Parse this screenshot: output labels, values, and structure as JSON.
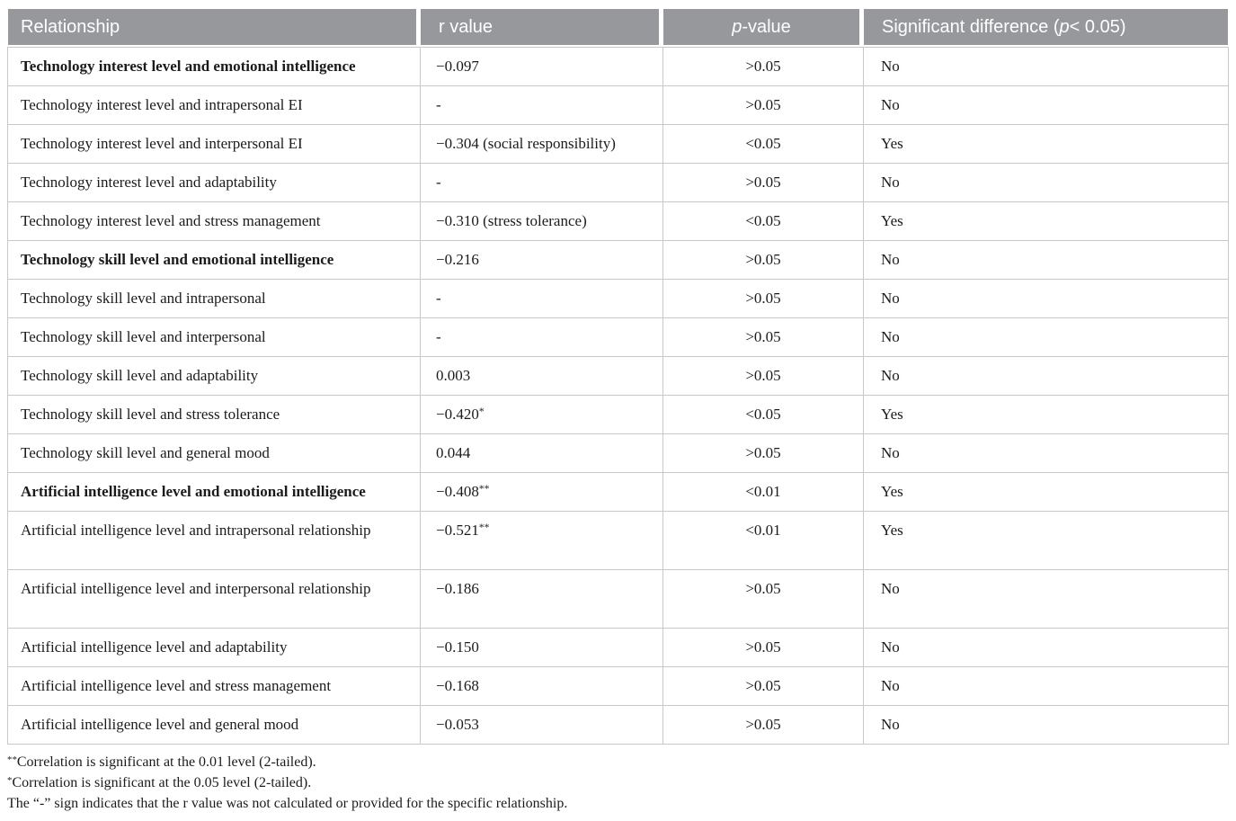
{
  "colors": {
    "header_background": "#96989b",
    "header_text": "#ffffff",
    "grid_border": "#c6c8c9",
    "body_text": "#1b1b1b"
  },
  "header": {
    "relationship": "Relationship",
    "r_value": "r value",
    "p_value": {
      "italic": "p",
      "post": "-value"
    },
    "significant": {
      "pre": "Significant difference (",
      "italic": "p",
      "post": " < 0.05)"
    }
  },
  "rows": [
    {
      "relationship": "Technology interest level and emotional intelligence",
      "bold": true,
      "tall": false,
      "r": "−0.097",
      "r_sup": "",
      "p": ">0.05",
      "sig": "No"
    },
    {
      "relationship": "Technology interest level and intrapersonal EI",
      "bold": false,
      "tall": false,
      "r": "-",
      "r_sup": "",
      "p": ">0.05",
      "sig": "No"
    },
    {
      "relationship": "Technology interest level and interpersonal EI",
      "bold": false,
      "tall": false,
      "r": "−0.304 (social responsibility)",
      "r_sup": "",
      "p": "<0.05",
      "sig": "Yes"
    },
    {
      "relationship": "Technology interest level and adaptability",
      "bold": false,
      "tall": false,
      "r": "-",
      "r_sup": "",
      "p": ">0.05",
      "sig": "No"
    },
    {
      "relationship": "Technology interest level and stress management",
      "bold": false,
      "tall": false,
      "r": "−0.310 (stress tolerance)",
      "r_sup": "",
      "p": "<0.05",
      "sig": "Yes"
    },
    {
      "relationship": "Technology skill level and emotional intelligence",
      "bold": true,
      "tall": false,
      "r": "−0.216",
      "r_sup": "",
      "p": ">0.05",
      "sig": "No"
    },
    {
      "relationship": "Technology skill level and intrapersonal",
      "bold": false,
      "tall": false,
      "r": "-",
      "r_sup": "",
      "p": ">0.05",
      "sig": "No"
    },
    {
      "relationship": "Technology skill level and interpersonal",
      "bold": false,
      "tall": false,
      "r": "-",
      "r_sup": "",
      "p": ">0.05",
      "sig": "No"
    },
    {
      "relationship": "Technology skill level and adaptability",
      "bold": false,
      "tall": false,
      "r": "0.003",
      "r_sup": "",
      "p": ">0.05",
      "sig": "No"
    },
    {
      "relationship": "Technology skill level and stress tolerance",
      "bold": false,
      "tall": false,
      "r": "−0.420",
      "r_sup": "*",
      "p": "<0.05",
      "sig": "Yes"
    },
    {
      "relationship": "Technology skill level and general mood",
      "bold": false,
      "tall": false,
      "r": "0.044",
      "r_sup": "",
      "p": ">0.05",
      "sig": "No"
    },
    {
      "relationship": "Artificial intelligence level and emotional intelligence",
      "bold": true,
      "tall": false,
      "r": "−0.408",
      "r_sup": "**",
      "p": "<0.01",
      "sig": "Yes"
    },
    {
      "relationship": "Artificial intelligence level and intrapersonal relationship",
      "bold": false,
      "tall": true,
      "r": "−0.521",
      "r_sup": "**",
      "p": "<0.01",
      "sig": "Yes"
    },
    {
      "relationship": "Artificial intelligence level and interpersonal relationship",
      "bold": false,
      "tall": true,
      "r": "−0.186",
      "r_sup": "",
      "p": ">0.05",
      "sig": "No"
    },
    {
      "relationship": "Artificial intelligence level and adaptability",
      "bold": false,
      "tall": false,
      "r": "−0.150",
      "r_sup": "",
      "p": ">0.05",
      "sig": "No"
    },
    {
      "relationship": "Artificial intelligence level and stress management",
      "bold": false,
      "tall": false,
      "r": "−0.168",
      "r_sup": "",
      "p": ">0.05",
      "sig": "No"
    },
    {
      "relationship": "Artificial intelligence level and general mood",
      "bold": false,
      "tall": false,
      "r": "−0.053",
      "r_sup": "",
      "p": ">0.05",
      "sig": "No"
    }
  ],
  "footnotes": [
    {
      "sup": "**",
      "text": "Correlation is significant at the 0.01 level (2-tailed)."
    },
    {
      "sup": "*",
      "text": "Correlation is significant at the 0.05 level (2-tailed)."
    },
    {
      "sup": "",
      "text": "The “-” sign indicates that the r value was not calculated or provided for the specific relationship."
    }
  ]
}
